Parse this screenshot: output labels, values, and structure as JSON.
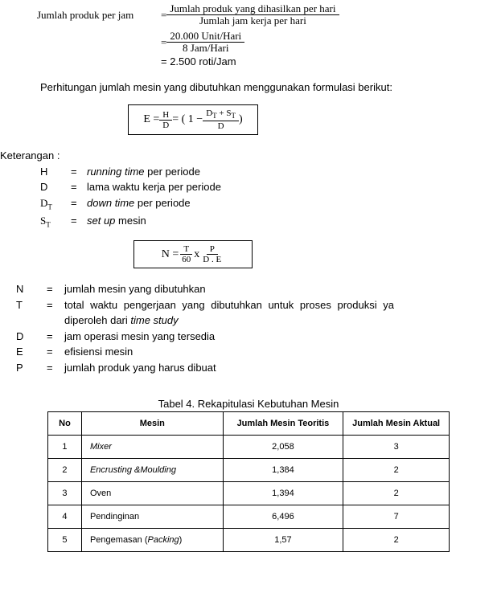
{
  "eq1": {
    "lhs": "Jumlah produk per jam",
    "num": "Jumlah  produk yang dihasilkan  per hari",
    "den": "Jumlah  jam kerja  per hari",
    "num2": "20.000 Unit/Hari",
    "den2": "8 Jam/Hari",
    "result": "= 2.500 roti/Jam"
  },
  "para1": "Perhitungan jumlah mesin yang dibutuhkan menggunakan formulasi berikut:",
  "formula_E": {
    "lhs": "E = ",
    "f1n": "H",
    "f1d": "D",
    "mid": " = ( 1 − ",
    "f2n": "D",
    "f2n_sub": "T",
    "f2n_plus": " + S",
    "f2n_sub2": "T",
    "f2d": "D",
    "close": " )"
  },
  "ket": "Keterangan :",
  "defsE": [
    {
      "sym": "H",
      "txt": "running time",
      "suffix": " per periode",
      "italic_sym": false,
      "serif": false
    },
    {
      "sym": "D",
      "txt": "",
      "suffix": "lama waktu kerja per periode",
      "italic_sym": false,
      "serif": false
    },
    {
      "sym": "D",
      "sub": "T",
      "txt": "down time",
      "suffix": " per periode",
      "italic_sym": false,
      "serif": true
    },
    {
      "sym": "S",
      "sub": "T",
      "txt": "set up",
      "suffix": " mesin",
      "italic_sym": false,
      "serif": true
    }
  ],
  "formula_N": {
    "lhs": "N = ",
    "f1n": "T",
    "f1d": "60",
    "mid": " x ",
    "f2n": "P",
    "f2d": "D . E"
  },
  "defsN": [
    {
      "sym": "N",
      "desc": "jumlah mesin yang dibutuhkan"
    },
    {
      "sym": "T",
      "desc_pre": "total  waktu  pengerjaan  yang  dibutuhkan  untuk  proses  produksi  ya",
      "desc_line2": "diperoleh dari ",
      "italic_tail": "time study"
    },
    {
      "sym": "D",
      "desc": "jam operasi mesin yang tersedia"
    },
    {
      "sym": "E",
      "desc": "efisiensi mesin"
    },
    {
      "sym": "P",
      "desc": "jumlah produk yang harus dibuat"
    }
  ],
  "table": {
    "caption": "Tabel 4. Rekapitulasi Kebutuhan Mesin",
    "headers": [
      "No",
      "Mesin",
      "Jumlah Mesin Teoritis",
      "Jumlah Mesin Aktual"
    ],
    "col_widths": [
      "42px",
      "176px",
      "150px",
      "132px"
    ],
    "rows": [
      {
        "no": "1",
        "mesin_italic": "Mixer",
        "mesin": "",
        "teoritis": "2,058",
        "aktual": "3"
      },
      {
        "no": "2",
        "mesin_italic": "Encrusting &Moulding",
        "mesin": "",
        "teoritis": "1,384",
        "aktual": "2"
      },
      {
        "no": "3",
        "mesin_italic": "",
        "mesin": "Oven",
        "teoritis": "1,394",
        "aktual": "2"
      },
      {
        "no": "4",
        "mesin_italic": "",
        "mesin": "Pendinginan",
        "teoritis": "6,496",
        "aktual": "7"
      },
      {
        "no": "5",
        "mesin_italic": "Packing",
        "mesin": "Pengemasan (",
        "mesin_after": ")",
        "teoritis": "1,57",
        "aktual": "2"
      }
    ]
  }
}
